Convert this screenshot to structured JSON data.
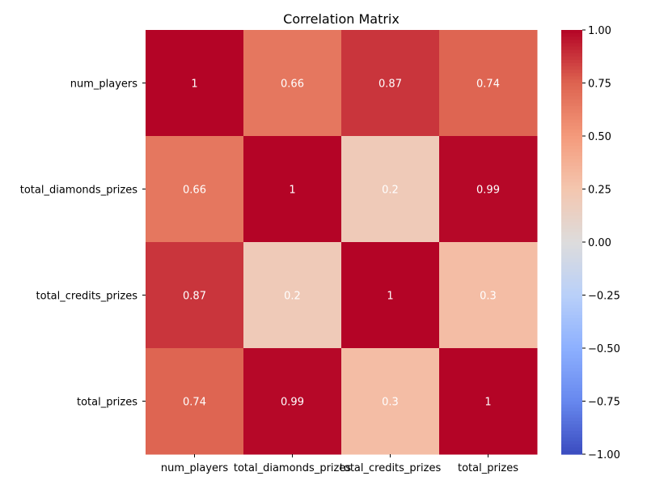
{
  "chart_data": {
    "type": "heatmap",
    "title": "Correlation Matrix",
    "x_labels": [
      "num_players",
      "total_diamonds_prizes",
      "total_credits_prizes",
      "total_prizes"
    ],
    "y_labels": [
      "num_players",
      "total_diamonds_prizes",
      "total_credits_prizes",
      "total_prizes"
    ],
    "values": [
      [
        1,
        0.66,
        0.87,
        0.74
      ],
      [
        0.66,
        1,
        0.2,
        0.99
      ],
      [
        0.87,
        0.2,
        1,
        0.3
      ],
      [
        0.74,
        0.99,
        0.3,
        1
      ]
    ],
    "value_labels": [
      [
        "1",
        "0.66",
        "0.87",
        "0.74"
      ],
      [
        "0.66",
        "1",
        "0.2",
        "0.99"
      ],
      [
        "0.87",
        "0.2",
        "1",
        "0.3"
      ],
      [
        "0.74",
        "0.99",
        "0.3",
        "1"
      ]
    ],
    "colormap": "coolwarm",
    "vmin": -1,
    "vmax": 1,
    "colorbar_ticks": [
      "−1.00",
      "−0.75",
      "−0.50",
      "−0.25",
      "0.00",
      "0.25",
      "0.50",
      "0.75",
      "1.00"
    ],
    "colorbar_tick_values": [
      -1,
      -0.75,
      -0.5,
      -0.25,
      0,
      0.25,
      0.5,
      0.75,
      1
    ]
  }
}
